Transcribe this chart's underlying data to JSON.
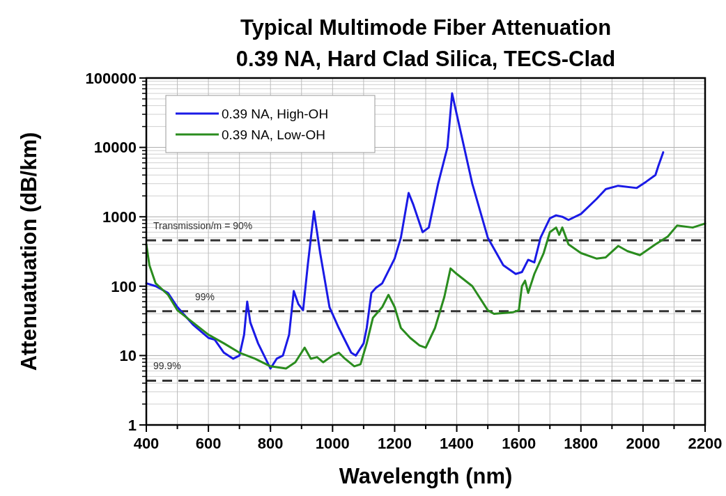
{
  "chart_data": {
    "type": "line",
    "title": "Typical Multimode Fiber Attenuation",
    "subtitle": "0.39 NA, Hard Clad Silica, TECS-Clad",
    "xlabel": "Wavelength (nm)",
    "ylabel": "Attenuatuation (dB/km)",
    "log": "y",
    "grid": true,
    "legend": "top left",
    "line_style": "solid",
    "annotations": [
      "Transmission/m = 90%",
      "99%",
      "99.9%"
    ],
    "xlim": [
      400,
      2200
    ],
    "xticks": [
      400,
      {
        "value": 500,
        "label": null
      },
      600,
      {
        "value": 700,
        "label": null
      },
      800,
      {
        "value": 900,
        "label": null
      },
      1000,
      {
        "value": 1100,
        "label": null
      },
      1200,
      {
        "value": 1300,
        "label": null
      },
      1400,
      {
        "value": 1500,
        "label": null
      },
      1600,
      {
        "value": 1700,
        "label": null
      },
      1800,
      {
        "value": 1900,
        "label": null
      },
      2000,
      {
        "value": 2100,
        "label": null
      },
      2200
    ],
    "ylim": [
      1,
      100000
    ],
    "yticks": [
      1,
      10,
      100,
      1000,
      10000,
      100000
    ],
    "ref_lines": [
      {
        "axis": "y",
        "value": 458,
        "color": "#333333",
        "line_style": "dashed"
      },
      {
        "axis": "y",
        "value": 43.6,
        "color": "#333333",
        "line_style": "dashed"
      },
      {
        "axis": "y",
        "value": 4.35,
        "color": "#333333",
        "line_style": "dashed"
      }
    ],
    "series": [
      {
        "name": "0.39 NA, High-OH",
        "color": "#1a1ae6",
        "x": [
          400,
          430,
          470,
          500,
          550,
          600,
          620,
          650,
          680,
          700,
          715,
          725,
          735,
          760,
          790,
          800,
          820,
          840,
          860,
          875,
          890,
          905,
          920,
          940,
          960,
          990,
          1020,
          1060,
          1075,
          1100,
          1110,
          1125,
          1140,
          1160,
          1200,
          1220,
          1245,
          1260,
          1290,
          1310,
          1340,
          1370,
          1385,
          1400,
          1450,
          1500,
          1550,
          1590,
          1610,
          1630,
          1650,
          1670,
          1700,
          1720,
          1740,
          1760,
          1800,
          1850,
          1880,
          1920,
          1980,
          2010,
          2040,
          2050,
          2065
        ],
        "values": [
          110,
          100,
          80,
          50,
          28,
          18,
          17,
          11,
          9,
          10,
          20,
          60,
          30,
          15,
          8,
          6.5,
          9,
          10,
          20,
          85,
          55,
          45,
          200,
          1200,
          300,
          50,
          25,
          11,
          10,
          15,
          25,
          80,
          95,
          110,
          250,
          500,
          2200,
          1500,
          600,
          700,
          3000,
          10000,
          60000,
          30000,
          3000,
          500,
          200,
          150,
          160,
          240,
          220,
          500,
          950,
          1050,
          1000,
          900,
          1100,
          1800,
          2500,
          2800,
          2600,
          3200,
          4000,
          5500,
          8500
        ]
      },
      {
        "name": "0.39 NA, Low-OH",
        "color": "#2a8c1e",
        "x": [
          400,
          410,
          430,
          470,
          500,
          550,
          600,
          650,
          700,
          750,
          800,
          850,
          880,
          910,
          930,
          950,
          970,
          1000,
          1020,
          1040,
          1070,
          1090,
          1110,
          1130,
          1160,
          1180,
          1200,
          1220,
          1250,
          1280,
          1300,
          1330,
          1360,
          1380,
          1400,
          1450,
          1500,
          1520,
          1580,
          1600,
          1610,
          1620,
          1630,
          1650,
          1680,
          1700,
          1720,
          1730,
          1740,
          1760,
          1800,
          1850,
          1880,
          1920,
          1950,
          1990,
          2040,
          2080,
          2110,
          2160,
          2200
        ],
        "values": [
          400,
          200,
          110,
          75,
          45,
          30,
          20,
          15,
          11,
          9,
          7,
          6.5,
          8,
          13,
          9,
          9.5,
          8,
          10,
          11,
          9,
          7,
          7.5,
          15,
          35,
          50,
          75,
          50,
          25,
          18,
          14,
          13,
          25,
          70,
          180,
          150,
          100,
          45,
          40,
          42,
          45,
          100,
          120,
          80,
          150,
          300,
          600,
          700,
          550,
          700,
          400,
          300,
          250,
          260,
          380,
          320,
          280,
          400,
          520,
          750,
          700,
          800
        ]
      }
    ]
  }
}
